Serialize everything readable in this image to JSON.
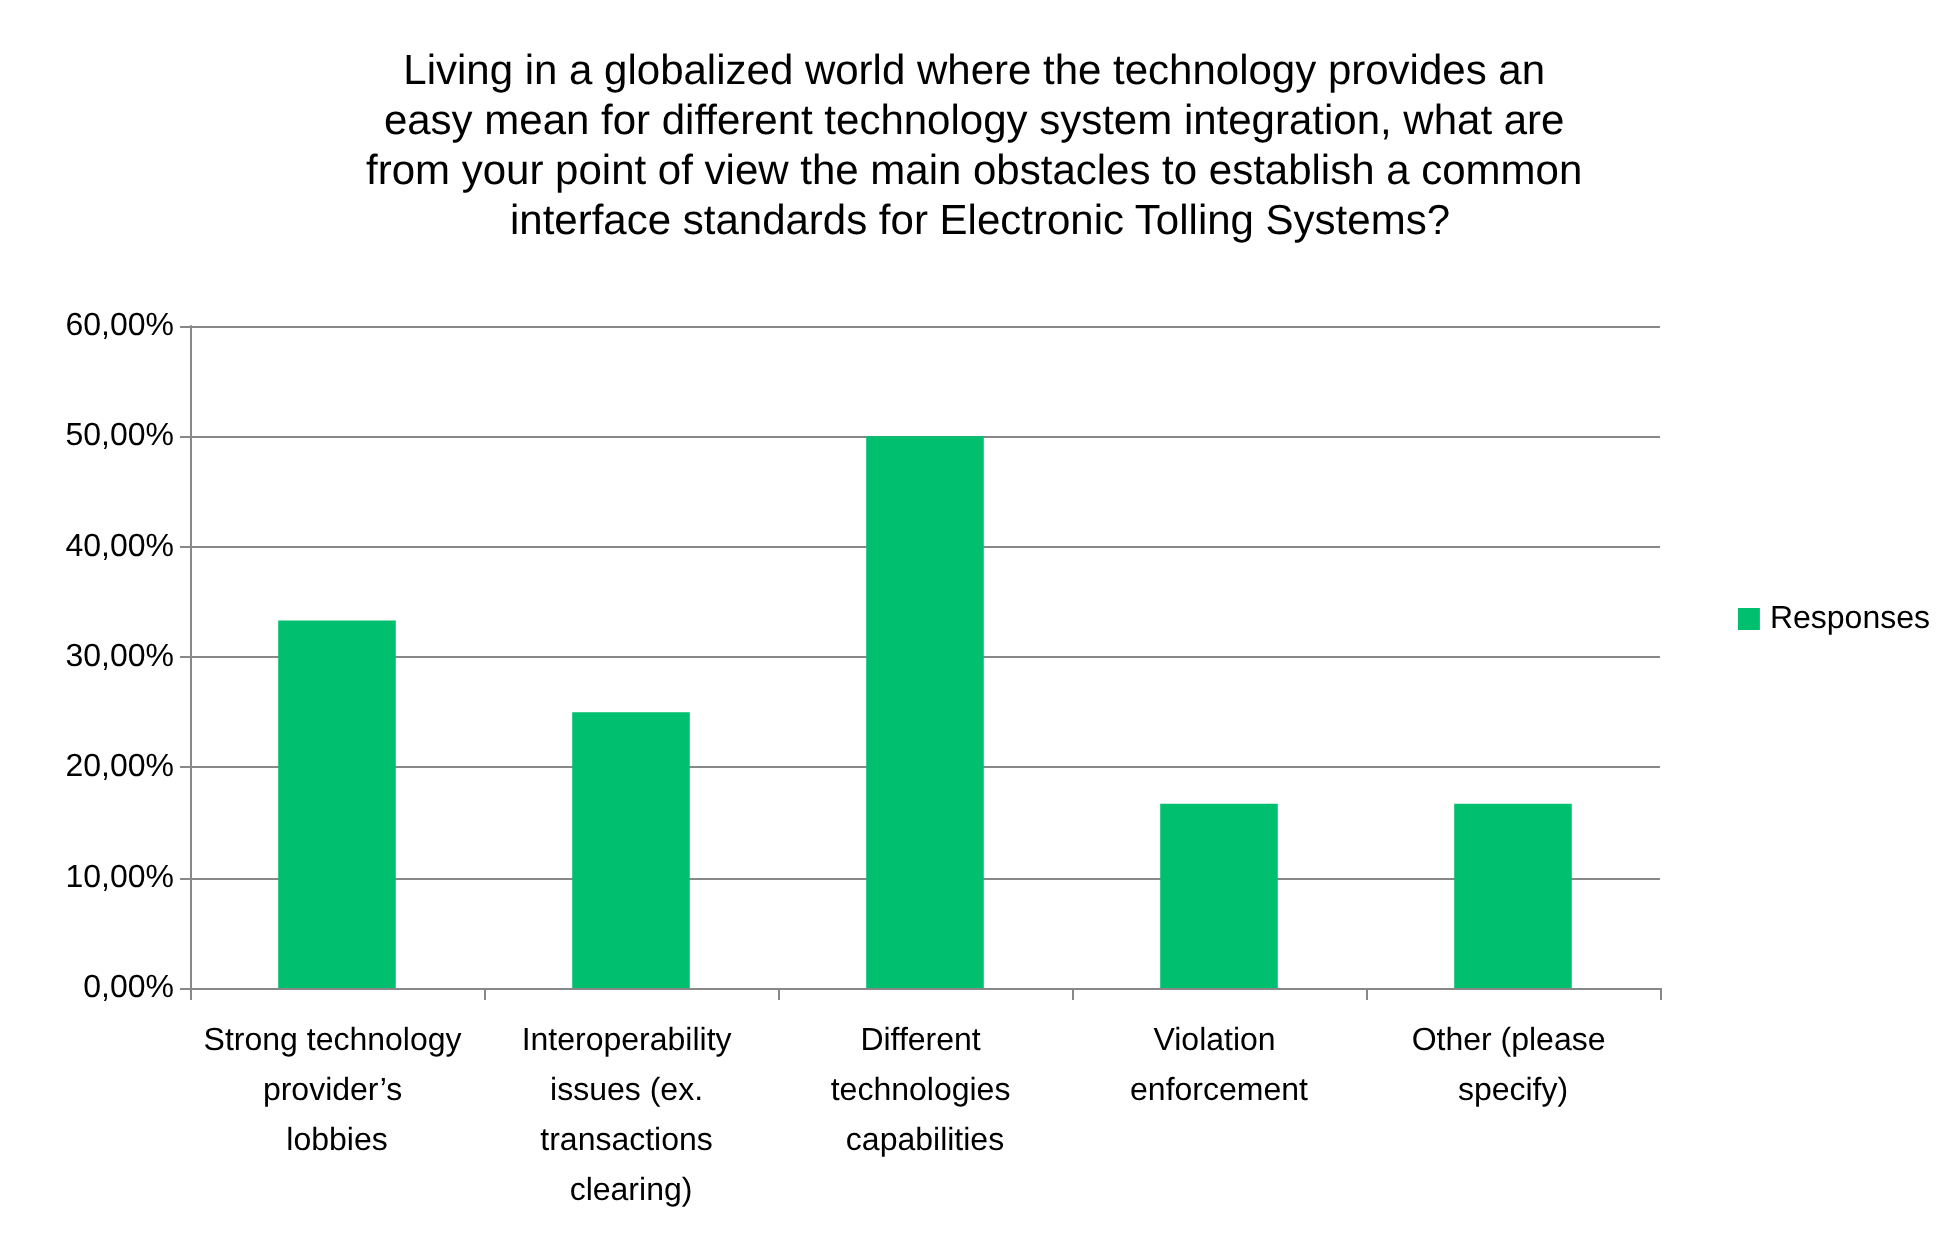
{
  "chart_data": {
    "type": "bar",
    "title": "Living in a globalized world where the technology provides an easy mean for different technology system integration, what are from your point of view the main obstacles to establish a common interface standards for Electronic Tolling Systems?",
    "categories": [
      "Strong technology provider’s lobbies",
      "Interoperability issues (ex. transactions clearing)",
      "Different technologies capabilities",
      "Violation enforcement",
      "Other (please specify)"
    ],
    "series": [
      {
        "name": "Responses",
        "color": "#00c06f",
        "values": [
          33.3,
          25,
          50,
          16.7,
          16.7
        ]
      }
    ],
    "ylim": [
      0,
      60
    ],
    "yticks": [
      {
        "value": 0,
        "label": "0,00%"
      },
      {
        "value": 10,
        "label": "10,00%"
      },
      {
        "value": 20,
        "label": "20,00%"
      },
      {
        "value": 30,
        "label": "30,00%"
      },
      {
        "value": 40,
        "label": "40,00%"
      },
      {
        "value": 50,
        "label": "50,00%"
      },
      {
        "value": 60,
        "label": "60,00%"
      }
    ],
    "grid": "y",
    "legend": "right"
  }
}
